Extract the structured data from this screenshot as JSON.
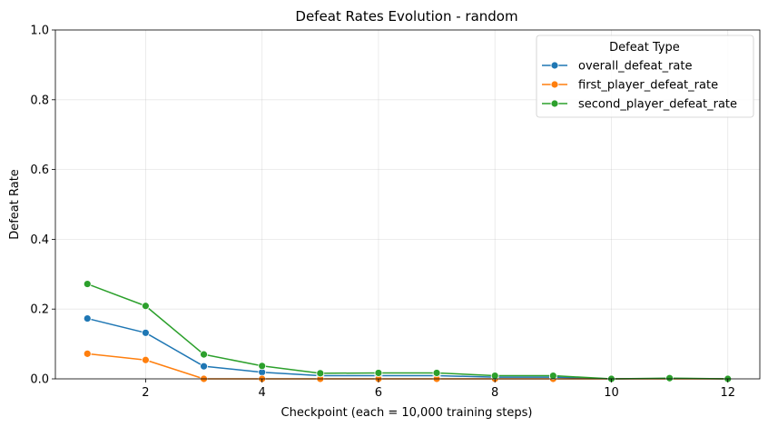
{
  "chart_data": {
    "type": "line",
    "title": "Defeat Rates Evolution - random",
    "xlabel": "Checkpoint (each = 10,000 training steps)",
    "ylabel": "Defeat Rate",
    "xlim": [
      0.45,
      12.55
    ],
    "ylim": [
      0,
      1
    ],
    "xticks": [
      2,
      4,
      6,
      8,
      10,
      12
    ],
    "yticks": [
      0,
      0.2,
      0.4,
      0.6,
      0.8,
      1
    ],
    "ytick_labels": [
      "0.0",
      "0.2",
      "0.4",
      "0.6",
      "0.8",
      "1.0"
    ],
    "grid": true,
    "legend": {
      "title": "Defeat Type",
      "placement": "top-right"
    },
    "x": [
      1,
      2,
      3,
      4,
      5,
      6,
      7,
      8,
      9,
      10,
      11,
      12
    ],
    "series": [
      {
        "name": "overall_defeat_rate",
        "color": "#1f77b4",
        "values": [
          0.173,
          0.132,
          0.036,
          0.019,
          0.009,
          0.009,
          0.009,
          0.005,
          0.005,
          0.0,
          0.001,
          0.0
        ]
      },
      {
        "name": "first_player_defeat_rate",
        "color": "#ff7f0e",
        "values": [
          0.072,
          0.054,
          0.0,
          0.0,
          0.0,
          0.0,
          0.0,
          0.0,
          0.0,
          0.0,
          0.0,
          0.0
        ]
      },
      {
        "name": "second_player_defeat_rate",
        "color": "#2ca02c",
        "values": [
          0.272,
          0.209,
          0.07,
          0.037,
          0.016,
          0.017,
          0.017,
          0.009,
          0.009,
          0.0,
          0.002,
          0.0
        ]
      }
    ]
  }
}
